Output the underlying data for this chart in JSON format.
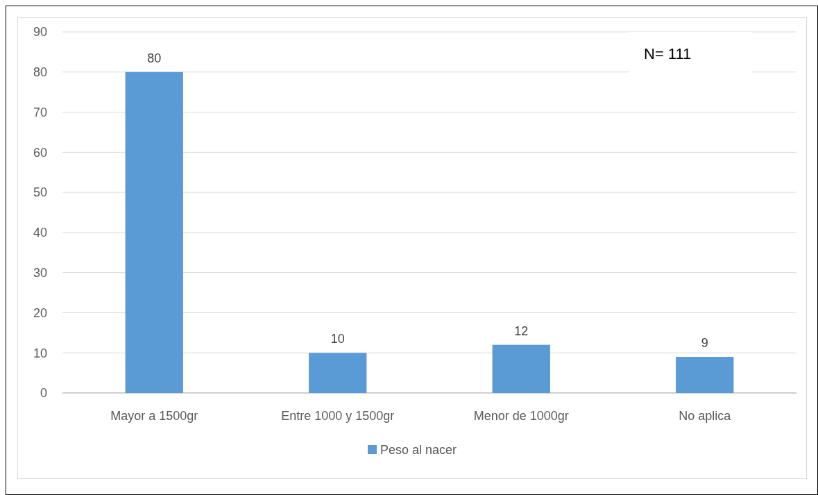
{
  "chart_data": {
    "type": "bar",
    "categories": [
      "Mayor a 1500gr",
      "Entre 1000 y 1500gr",
      "Menor de 1000gr",
      "No aplica"
    ],
    "series": [
      {
        "name": "Peso al nacer",
        "color": "#5b9bd5",
        "values": [
          80,
          10,
          12,
          9
        ]
      }
    ],
    "ylim": [
      0,
      90
    ],
    "yticks": [
      0,
      10,
      20,
      30,
      40,
      50,
      60,
      70,
      80,
      90
    ],
    "grid": "y",
    "legend": "bottom",
    "data_labels": true,
    "annotations": [
      "N= 111"
    ]
  }
}
